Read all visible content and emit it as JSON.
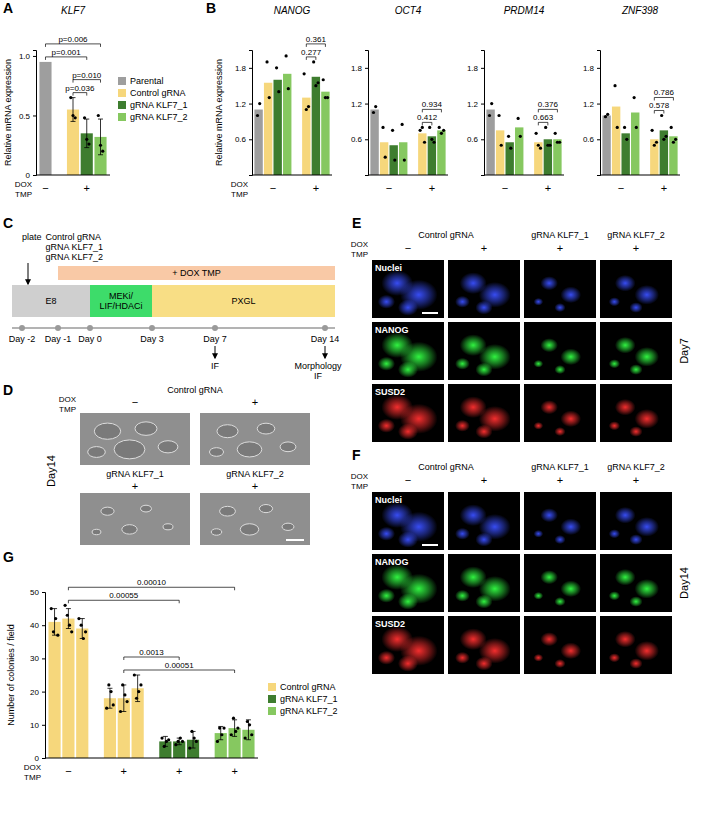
{
  "chart_data": [
    {
      "type": "bar",
      "panel": "A",
      "title": "KLF7",
      "y_label": "Relative mRNA expression",
      "x_row_labels": [
        "DOX",
        "TMP"
      ],
      "categories": [
        "−",
        "+"
      ],
      "series": [
        {
          "name": "Parental",
          "color": "#9e9e9e",
          "values": [
            0.95,
            null
          ]
        },
        {
          "name": "Control gRNA",
          "color": "#f6d77c",
          "values": [
            null,
            0.55
          ],
          "errors": [
            null,
            0.1
          ],
          "points": [
            null,
            [
              0.65,
              0.5,
              0.48
            ]
          ]
        },
        {
          "name": "gRNA KLF7_1",
          "color": "#3e7d2f",
          "values": [
            null,
            0.35
          ],
          "errors": [
            null,
            0.12
          ],
          "points": [
            null,
            [
              0.48,
              0.3,
              0.26
            ]
          ]
        },
        {
          "name": "gRNA KLF7_2",
          "color": "#86c860",
          "values": [
            null,
            0.32
          ],
          "errors": [
            null,
            0.15
          ],
          "points": [
            null,
            [
              0.5,
              0.25,
              0.2
            ]
          ]
        }
      ],
      "ylim": [
        0,
        1.05
      ],
      "yticks": [
        0,
        0.5,
        {
          "value": 1,
          "label": "1.0"
        }
      ],
      "legend": "right",
      "comparisons": [
        {
          "label": "p=0.006",
          "from": [
            "Parental",
            0
          ],
          "to": [
            "gRNA KLF7_2",
            1
          ]
        },
        {
          "label": "p=0.001",
          "from": [
            "Parental",
            0
          ],
          "to": [
            "gRNA KLF7_1",
            1
          ]
        },
        {
          "label": "p=0.010",
          "from": [
            "Control gRNA",
            1
          ],
          "to": [
            "gRNA KLF7_2",
            1
          ]
        },
        {
          "label": "p=0.036",
          "from": [
            "Control gRNA",
            1
          ],
          "to": [
            "gRNA KLF7_1",
            1
          ]
        }
      ]
    },
    {
      "type": "bar",
      "panel": "B",
      "title": "NANOG",
      "y_label": "Relative mRNA expression",
      "x_row_labels": [
        "DOX",
        "TMP"
      ],
      "categories": [
        "−",
        "+"
      ],
      "series": [
        {
          "name": "Parental",
          "color": "#9e9e9e",
          "values": [
            1.1,
            null
          ],
          "points": [
            [
              1.0,
              1.2
            ],
            null
          ]
        },
        {
          "name": "Control gRNA",
          "color": "#f6d77c",
          "values": [
            1.55,
            1.3
          ],
          "points": [
            [
              1.9,
              1.3
            ],
            [
              1.7,
              1.1,
              1.15
            ]
          ]
        },
        {
          "name": "gRNA KLF7_1",
          "color": "#3e7d2f",
          "values": [
            1.6,
            1.65
          ],
          "points": [
            [
              1.8,
              1.4
            ],
            [
              1.9,
              1.5,
              1.55
            ]
          ]
        },
        {
          "name": "gRNA KLF7_2",
          "color": "#86c860",
          "values": [
            1.7,
            1.4
          ],
          "points": [
            [
              2.0,
              1.45
            ],
            [
              1.6,
              1.3,
              1.3
            ]
          ]
        }
      ],
      "ylim": [
        0,
        2.1
      ],
      "yticks": [
        0.6,
        1.2,
        1.8
      ],
      "comparisons": [
        {
          "label": "0.361",
          "from": [
            "Control gRNA",
            1
          ],
          "to": [
            "gRNA KLF7_2",
            1
          ]
        },
        {
          "label": "0.277",
          "from": [
            "Control gRNA",
            1
          ],
          "to": [
            "gRNA KLF7_1",
            1
          ]
        }
      ]
    },
    {
      "type": "bar",
      "title": "OCT4",
      "categories": [
        "−",
        "+"
      ],
      "series": [
        {
          "name": "Parental",
          "color": "#9e9e9e",
          "values": [
            1.1,
            null
          ],
          "points": [
            [
              1.05,
              1.15
            ],
            null
          ]
        },
        {
          "name": "Control gRNA",
          "color": "#f6d77c",
          "values": [
            0.55,
            0.7
          ],
          "points": [
            [
              0.8,
              0.3
            ],
            [
              0.75,
              0.8,
              0.55
            ]
          ]
        },
        {
          "name": "gRNA KLF7_1",
          "color": "#3e7d2f",
          "values": [
            0.5,
            0.65
          ],
          "points": [
            [
              0.75,
              0.25
            ],
            [
              0.8,
              0.6,
              0.55
            ]
          ]
        },
        {
          "name": "gRNA KLF7_2",
          "color": "#86c860",
          "values": [
            0.55,
            0.75
          ],
          "points": [
            [
              0.85,
              0.25
            ],
            [
              0.8,
              0.7,
              0.75
            ]
          ]
        }
      ],
      "ylim": [
        0,
        2.1
      ],
      "yticks": [
        0.6,
        1.2,
        1.8
      ],
      "comparisons": [
        {
          "label": "0.934",
          "from": [
            "Control gRNA",
            1
          ],
          "to": [
            "gRNA KLF7_2",
            1
          ]
        },
        {
          "label": "0.412",
          "from": [
            "Control gRNA",
            1
          ],
          "to": [
            "gRNA KLF7_1",
            1
          ]
        }
      ]
    },
    {
      "type": "bar",
      "title": "PRDM14",
      "categories": [
        "−",
        "+"
      ],
      "series": [
        {
          "name": "Parental",
          "color": "#9e9e9e",
          "values": [
            1.1,
            null
          ],
          "points": [
            [
              1.0,
              1.2
            ],
            null
          ]
        },
        {
          "name": "Control gRNA",
          "color": "#f6d77c",
          "values": [
            0.75,
            0.55
          ],
          "points": [
            [
              1.0,
              0.5
            ],
            [
              0.7,
              0.5,
              0.45
            ]
          ]
        },
        {
          "name": "gRNA KLF7_1",
          "color": "#3e7d2f",
          "values": [
            0.55,
            0.6
          ],
          "points": [
            [
              0.65,
              0.45
            ],
            [
              0.8,
              0.5,
              0.5
            ]
          ]
        },
        {
          "name": "gRNA KLF7_2",
          "color": "#86c860",
          "values": [
            0.8,
            0.6
          ],
          "points": [
            [
              0.95,
              0.65
            ],
            [
              0.7,
              0.55,
              0.55
            ]
          ]
        }
      ],
      "ylim": [
        0,
        2.1
      ],
      "yticks": [
        0.6,
        1.2,
        1.8
      ],
      "comparisons": [
        {
          "label": "0.376",
          "from": [
            "Control gRNA",
            1
          ],
          "to": [
            "gRNA KLF7_2",
            1
          ]
        },
        {
          "label": "0.663",
          "from": [
            "Control gRNA",
            1
          ],
          "to": [
            "gRNA KLF7_1",
            1
          ]
        }
      ]
    },
    {
      "type": "bar",
      "title": "ZNF398",
      "categories": [
        "−",
        "+"
      ],
      "series": [
        {
          "name": "Parental",
          "color": "#9e9e9e",
          "values": [
            1.0,
            null
          ],
          "points": [
            [
              0.98,
              1.02
            ],
            null
          ]
        },
        {
          "name": "Control gRNA",
          "color": "#f6d77c",
          "values": [
            1.15,
            0.6
          ],
          "points": [
            [
              1.5,
              0.8
            ],
            [
              0.75,
              0.5,
              0.55
            ]
          ]
        },
        {
          "name": "gRNA KLF7_1",
          "color": "#3e7d2f",
          "values": [
            0.7,
            0.75
          ],
          "points": [
            [
              0.8,
              0.6
            ],
            [
              1.0,
              0.6,
              0.65
            ]
          ]
        },
        {
          "name": "gRNA KLF7_2",
          "color": "#86c860",
          "values": [
            1.05,
            0.65
          ],
          "points": [
            [
              1.3,
              0.8
            ],
            [
              0.8,
              0.55,
              0.6
            ]
          ]
        }
      ],
      "ylim": [
        0,
        2.1
      ],
      "yticks": [
        0.6,
        1.2,
        1.8
      ],
      "comparisons": [
        {
          "label": "0.786",
          "from": [
            "Control gRNA",
            1
          ],
          "to": [
            "gRNA KLF7_2",
            1
          ]
        },
        {
          "label": "0.578",
          "from": [
            "Control gRNA",
            1
          ],
          "to": [
            "gRNA KLF7_1",
            1
          ]
        }
      ]
    },
    {
      "type": "bar",
      "panel": "G",
      "y_label": "Number of colonies / field",
      "x_row_labels": [
        "DOX",
        "TMP"
      ],
      "categories": [
        "−",
        "+",
        "+",
        "+"
      ],
      "series": [
        {
          "name": "Control gRNA",
          "color": "#f6d77c",
          "values": [
            [
              41,
              42,
              39
            ],
            [
              18,
              18,
              21
            ],
            null,
            null
          ],
          "errors": [
            [
              4,
              3,
              3
            ],
            [
              3,
              4,
              4
            ],
            null,
            null
          ],
          "points": [
            [
              [
                45,
                38,
                42,
                37
              ],
              [
                46,
                43,
                40,
                38
              ],
              [
                42,
                40,
                36,
                38
              ]
            ],
            [
              [
                15,
                22,
                20,
                16
              ],
              [
                14,
                22,
                19,
                17
              ],
              [
                25,
                18,
                20,
                22
              ]
            ],
            null,
            null
          ]
        },
        {
          "name": "gRNA KLF7_1",
          "color": "#3e7d2f",
          "values": [
            null,
            null,
            [
              5,
              5,
              5.5
            ],
            null
          ],
          "errors": [
            null,
            null,
            [
              1.5,
              1,
              2.5
            ],
            null
          ],
          "points": [
            null,
            null,
            [
              [
                6,
                3.5,
                5,
                5.5
              ],
              [
                4,
                5,
                6,
                5
              ],
              [
                3,
                8,
                6,
                5
              ]
            ],
            null
          ]
        },
        {
          "name": "gRNA KLF7_2",
          "color": "#86c860",
          "values": [
            null,
            null,
            null,
            [
              7.5,
              9,
              8.5
            ]
          ],
          "errors": [
            null,
            null,
            null,
            [
              2,
              2.5,
              3
            ]
          ],
          "points": [
            null,
            null,
            null,
            [
              [
                5,
                9,
                7,
                9
              ],
              [
                7,
                12,
                8,
                9
              ],
              [
                6,
                11,
                10,
                7
              ]
            ]
          ]
        }
      ],
      "ylim": [
        0,
        50
      ],
      "yticks": [
        0,
        10,
        20,
        30,
        40,
        50
      ],
      "legend": "right",
      "comparisons": [
        {
          "label": "0.00010",
          "from": [
            "Control gRNA",
            0
          ],
          "to": [
            "gRNA KLF7_2",
            3
          ]
        },
        {
          "label": "0.00055",
          "from": [
            "Control gRNA",
            0
          ],
          "to": [
            "gRNA KLF7_1",
            2
          ]
        },
        {
          "label": "0.0013",
          "from": [
            "Control gRNA",
            1
          ],
          "to": [
            "gRNA KLF7_1",
            2
          ]
        },
        {
          "label": "0.00051",
          "from": [
            "Control gRNA",
            1
          ],
          "to": [
            "gRNA KLF7_2",
            3
          ]
        }
      ]
    }
  ],
  "diagram": {
    "panel": "C",
    "plating_verb": "plate",
    "plating": [
      "Control gRNA",
      "gRNA KLF7_1",
      "gRNA KLF7_2"
    ],
    "treatment": "+ DOX TMP",
    "stages": [
      {
        "label": [
          "E8"
        ]
      },
      {
        "label": [
          "MEKi/",
          "LIF/HDACi"
        ]
      },
      {
        "label": [
          "PXGL"
        ]
      }
    ],
    "days": [
      "Day -2",
      "Day -1",
      "Day 0",
      "Day 3",
      "Day 7",
      "Day 14"
    ],
    "readouts": [
      {
        "day": 4,
        "label": [
          "IF"
        ]
      },
      {
        "day": 5,
        "label": [
          "Morphology",
          "IF"
        ]
      }
    ]
  },
  "image_panels": [
    {
      "panel": "D",
      "side_label": "Day14",
      "condition_labels": [
        "DOX",
        "TMP"
      ],
      "columns": [
        {
          "header": "Control gRNA",
          "treatments": [
            "−",
            "+"
          ]
        },
        {
          "header": "gRNA KLF7_1",
          "treatments": [
            "+"
          ]
        },
        {
          "header": "gRNA KLF7_2",
          "treatments": [
            "+"
          ]
        }
      ]
    },
    {
      "panel": "E",
      "side_label": "Day7",
      "condition_labels": [
        "DOX",
        "TMP"
      ],
      "columns": [
        {
          "header": "Control gRNA",
          "treatments": [
            "−",
            "+"
          ]
        },
        {
          "header": "gRNA KLF7_1",
          "treatments": [
            "+"
          ]
        },
        {
          "header": "gRNA KLF7_2",
          "treatments": [
            "+"
          ]
        }
      ],
      "rows": [
        "Nuclei",
        "NANOG",
        "SUSD2"
      ]
    },
    {
      "panel": "F",
      "side_label": "Day14",
      "condition_labels": [
        "DOX",
        "TMP"
      ],
      "columns": [
        {
          "header": "Control gRNA",
          "treatments": [
            "−",
            "+"
          ]
        },
        {
          "header": "gRNA KLF7_1",
          "treatments": [
            "+"
          ]
        },
        {
          "header": "gRNA KLF7_2",
          "treatments": [
            "+"
          ]
        }
      ],
      "rows": [
        "Nuclei",
        "NANOG",
        "SUSD2"
      ]
    }
  ]
}
